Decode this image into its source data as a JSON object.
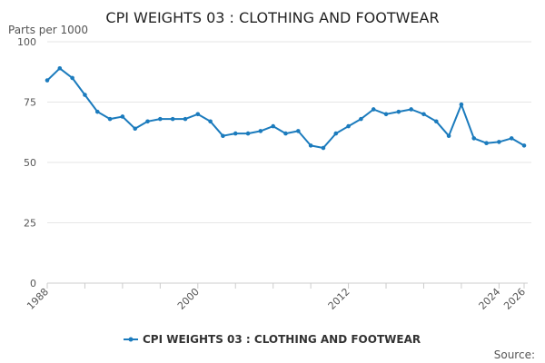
{
  "chart_data": {
    "type": "line",
    "title": "CPI WEIGHTS 03 : CLOTHING AND FOOTWEAR",
    "ylabel": "Parts per 1000",
    "xlabel": "",
    "ylim": [
      0,
      100
    ],
    "xlim": [
      1988,
      2026
    ],
    "y_ticks": [
      0,
      25,
      50,
      75,
      100
    ],
    "x_tick_labels": [
      1988,
      2000,
      2012,
      2024,
      2026
    ],
    "x_minor_ticks": [
      1991,
      1994,
      1997,
      2003,
      2006,
      2009,
      2015,
      2018,
      2021
    ],
    "grid": true,
    "legend_position": "bottom",
    "color": "#1b7bbd",
    "series": [
      {
        "name": "CPI WEIGHTS 03 : CLOTHING AND FOOTWEAR",
        "x": [
          1988,
          1989,
          1990,
          1991,
          1992,
          1993,
          1994,
          1995,
          1996,
          1997,
          1998,
          1999,
          2000,
          2001,
          2002,
          2003,
          2004,
          2005,
          2006,
          2007,
          2008,
          2009,
          2010,
          2011,
          2012,
          2013,
          2014,
          2015,
          2016,
          2017,
          2018,
          2019,
          2020,
          2021,
          2022,
          2023,
          2024,
          2025,
          2026
        ],
        "values": [
          84,
          89,
          85,
          78,
          71,
          68,
          69,
          64,
          67,
          68,
          68,
          68,
          70,
          67,
          61,
          62,
          62,
          63,
          65,
          62,
          63,
          57,
          56,
          62,
          65,
          68,
          72,
          70,
          71,
          72,
          70,
          67,
          61,
          74,
          60,
          58,
          58.5,
          60,
          57
        ]
      }
    ]
  },
  "source_label": "Source:"
}
